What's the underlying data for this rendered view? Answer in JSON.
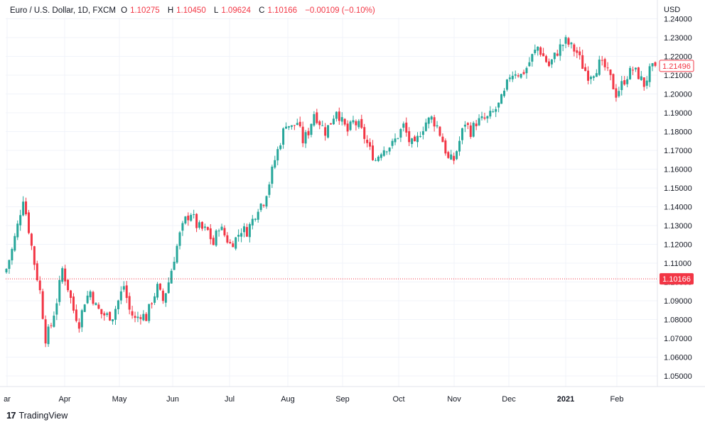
{
  "header": {
    "symbol": "Euro / U.S. Dollar, 1D, FXCM",
    "open_label": "O",
    "open": "1.10275",
    "high_label": "H",
    "high": "1.10450",
    "low_label": "L",
    "low": "1.09624",
    "close_label": "C",
    "close": "1.10166",
    "change": "−0.00109 (−0.10%)"
  },
  "price_axis_unit": "USD",
  "price_tags": {
    "current": "1.21496",
    "crosshair": "1.10166"
  },
  "branding": {
    "logo": "17",
    "name": "TradingView"
  },
  "colors": {
    "up": "#26a69a",
    "down": "#f23645",
    "grid": "#f0f3fa",
    "text": "#131722"
  },
  "chart_data": {
    "type": "candlestick",
    "title": "Euro / U.S. Dollar, 1D, FXCM",
    "ylabel": "USD",
    "ylim": [
      1.04,
      1.245
    ],
    "y_ticks": [
      "1.24000",
      "1.23000",
      "1.22000",
      "1.21000",
      "1.20000",
      "1.19000",
      "1.18000",
      "1.17000",
      "1.16000",
      "1.15000",
      "1.14000",
      "1.13000",
      "1.12000",
      "1.11000",
      "1.10000",
      "1.09000",
      "1.08000",
      "1.07000",
      "1.06000",
      "1.05000"
    ],
    "x_ticks": [
      "ar",
      "Apr",
      "May",
      "Jun",
      "Jul",
      "Aug",
      "Sep",
      "Oct",
      "Nov",
      "Dec",
      "2021",
      "Feb"
    ],
    "grid": true,
    "reference_line": 1.10166,
    "close_path": [
      [
        0,
        1.107
      ],
      [
        2,
        1.117
      ],
      [
        4,
        1.13
      ],
      [
        6,
        1.145
      ],
      [
        8,
        1.128
      ],
      [
        10,
        1.11
      ],
      [
        12,
        1.095
      ],
      [
        14,
        1.07
      ],
      [
        16,
        1.077
      ],
      [
        18,
        1.09
      ],
      [
        20,
        1.107
      ],
      [
        22,
        1.097
      ],
      [
        24,
        1.085
      ],
      [
        26,
        1.078
      ],
      [
        28,
        1.09
      ],
      [
        30,
        1.095
      ],
      [
        32,
        1.087
      ],
      [
        34,
        1.083
      ],
      [
        36,
        1.082
      ],
      [
        38,
        1.082
      ],
      [
        40,
        1.09
      ],
      [
        42,
        1.098
      ],
      [
        44,
        1.085
      ],
      [
        46,
        1.08
      ],
      [
        48,
        1.083
      ],
      [
        50,
        1.081
      ],
      [
        52,
        1.09
      ],
      [
        54,
        1.097
      ],
      [
        56,
        1.09
      ],
      [
        58,
        1.1
      ],
      [
        60,
        1.113
      ],
      [
        62,
        1.125
      ],
      [
        64,
        1.133
      ],
      [
        66,
        1.137
      ],
      [
        68,
        1.13
      ],
      [
        70,
        1.128
      ],
      [
        72,
        1.127
      ],
      [
        74,
        1.12
      ],
      [
        76,
        1.13
      ],
      [
        78,
        1.125
      ],
      [
        80,
        1.12
      ],
      [
        82,
        1.123
      ],
      [
        84,
        1.128
      ],
      [
        86,
        1.127
      ],
      [
        88,
        1.133
      ],
      [
        90,
        1.14
      ],
      [
        92,
        1.143
      ],
      [
        94,
        1.153
      ],
      [
        96,
        1.165
      ],
      [
        98,
        1.175
      ],
      [
        100,
        1.185
      ],
      [
        102,
        1.182
      ],
      [
        104,
        1.185
      ],
      [
        106,
        1.175
      ],
      [
        108,
        1.18
      ],
      [
        110,
        1.19
      ],
      [
        112,
        1.185
      ],
      [
        114,
        1.18
      ],
      [
        116,
        1.185
      ],
      [
        118,
        1.192
      ],
      [
        120,
        1.185
      ],
      [
        122,
        1.18
      ],
      [
        124,
        1.185
      ],
      [
        126,
        1.183
      ],
      [
        128,
        1.177
      ],
      [
        130,
        1.17
      ],
      [
        132,
        1.165
      ],
      [
        134,
        1.17
      ],
      [
        136,
        1.172
      ],
      [
        138,
        1.173
      ],
      [
        140,
        1.178
      ],
      [
        142,
        1.183
      ],
      [
        144,
        1.175
      ],
      [
        146,
        1.172
      ],
      [
        148,
        1.18
      ],
      [
        150,
        1.185
      ],
      [
        152,
        1.187
      ],
      [
        154,
        1.183
      ],
      [
        156,
        1.175
      ],
      [
        158,
        1.165
      ],
      [
        160,
        1.165
      ],
      [
        162,
        1.175
      ],
      [
        164,
        1.185
      ],
      [
        166,
        1.18
      ],
      [
        168,
        1.185
      ],
      [
        170,
        1.186
      ],
      [
        172,
        1.187
      ],
      [
        174,
        1.19
      ],
      [
        176,
        1.194
      ],
      [
        178,
        1.2
      ],
      [
        180,
        1.21
      ],
      [
        182,
        1.212
      ],
      [
        184,
        1.21
      ],
      [
        186,
        1.214
      ],
      [
        188,
        1.22
      ],
      [
        190,
        1.225
      ],
      [
        192,
        1.22
      ],
      [
        194,
        1.215
      ],
      [
        196,
        1.22
      ],
      [
        198,
        1.225
      ],
      [
        200,
        1.228
      ],
      [
        202,
        1.225
      ],
      [
        204,
        1.222
      ],
      [
        206,
        1.215
      ],
      [
        208,
        1.21
      ],
      [
        210,
        1.212
      ],
      [
        212,
        1.216
      ],
      [
        214,
        1.214
      ],
      [
        216,
        1.208
      ],
      [
        218,
        1.2
      ],
      [
        220,
        1.205
      ],
      [
        222,
        1.21
      ],
      [
        224,
        1.213
      ],
      [
        226,
        1.21
      ],
      [
        228,
        1.205
      ],
      [
        230,
        1.212
      ],
      [
        232,
        1.215
      ]
    ],
    "last_close": 1.21496
  }
}
